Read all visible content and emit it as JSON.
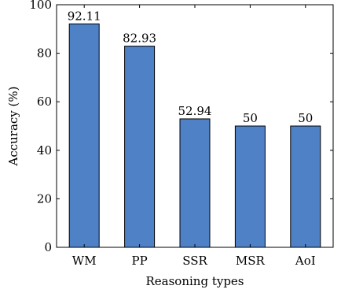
{
  "chart_data": {
    "type": "bar",
    "categories": [
      "WM",
      "PP",
      "SSR",
      "MSR",
      "AoI"
    ],
    "values": [
      92.11,
      82.93,
      52.94,
      50,
      50
    ],
    "value_labels": [
      "92.11",
      "82.93",
      "52.94",
      "50",
      "50"
    ],
    "xlabel": "Reasoning types",
    "ylabel": "Accuracy (%)",
    "ylim": [
      0,
      100
    ],
    "yticks": [
      0,
      20,
      40,
      60,
      80,
      100
    ],
    "grid": false,
    "bar_color": "#4F81C7",
    "bar_edge_color": "#000000"
  }
}
